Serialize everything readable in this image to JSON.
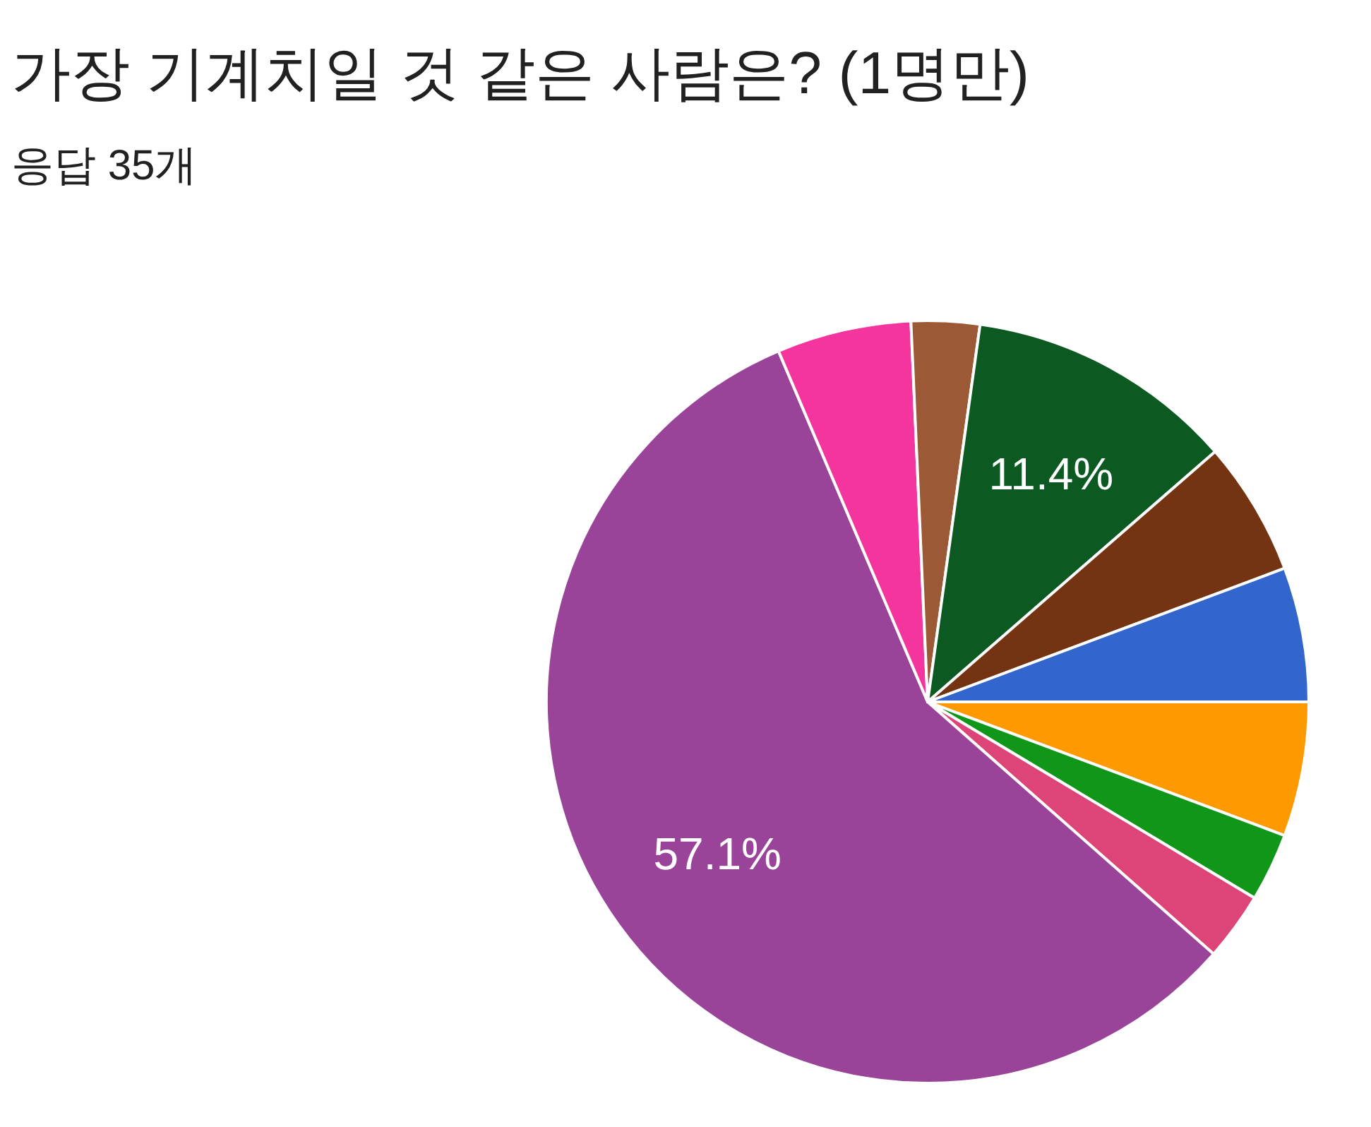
{
  "chart_data": {
    "type": "pie",
    "title": "가장 기계치일 것 같은 사람은? (1명만)",
    "subtitle": "응답 35개",
    "categories": [
      null,
      null,
      null,
      null,
      null,
      null,
      null,
      null,
      null
    ],
    "values": [
      5.7,
      2.9,
      2.9,
      57.1,
      5.7,
      2.9,
      11.4,
      5.7,
      5.7
    ],
    "colors": [
      "#ff9900",
      "#109618",
      "#dd4477",
      "#994499",
      "#f4359e",
      "#9c5935",
      "#0c5922",
      "#743411",
      "#3366cc"
    ],
    "value_labels": [
      null,
      null,
      null,
      "57.1%",
      null,
      null,
      "11.4%",
      null,
      null
    ]
  }
}
